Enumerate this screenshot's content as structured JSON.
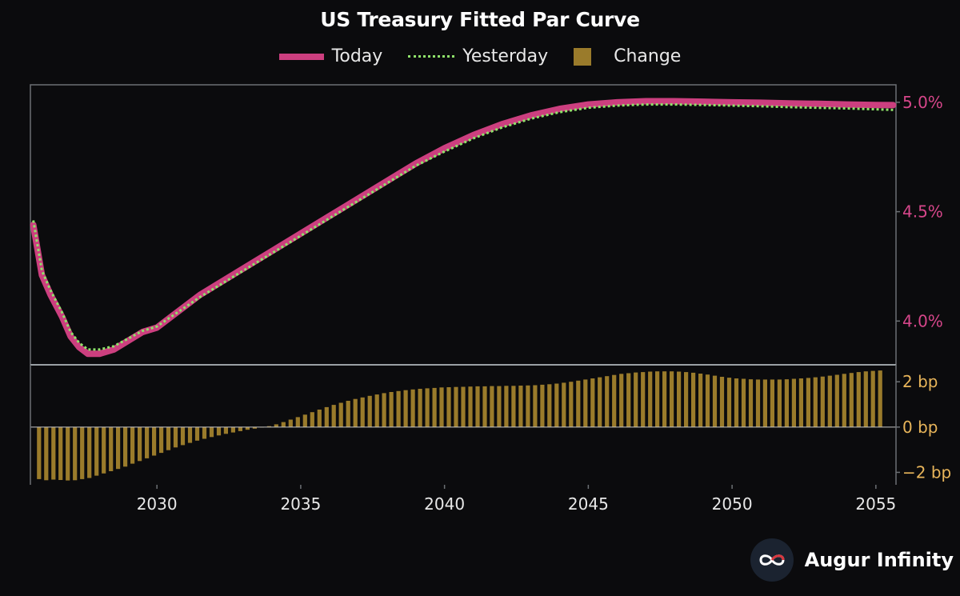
{
  "title": "US Treasury Fitted Par Curve",
  "legend": {
    "today": "Today",
    "yesterday": "Yesterday",
    "change": "Change"
  },
  "brand": {
    "name": "Augur Infinity",
    "logo_icon": "infinity-icon"
  },
  "colors": {
    "background": "#0b0b0d",
    "today": "#cc3f7f",
    "yesterday": "#8fe36a",
    "change": "#9a7b2b",
    "right_axis_top": "#d6468a",
    "right_axis_bottom": "#e8b55a",
    "frame": "#6c7074"
  },
  "chart_data": [
    {
      "type": "line",
      "title": "US Treasury Fitted Par Curve",
      "xlabel": "",
      "ylabel": "",
      "x_ticks": [
        2030,
        2035,
        2040,
        2045,
        2050,
        2055
      ],
      "xlim": [
        2025.6,
        2055.7
      ],
      "y_ticks": [
        "4.0%",
        "4.5%",
        "5.0%"
      ],
      "y_tick_values": [
        4.0,
        4.5,
        5.0
      ],
      "ylim": [
        3.8,
        5.08
      ],
      "y_axis_side": "right",
      "grid": false,
      "legend_position": "top",
      "series": [
        {
          "name": "Today",
          "style": "solid",
          "x": [
            2025.7,
            2026.0,
            2026.3,
            2026.7,
            2027.0,
            2027.3,
            2027.6,
            2028.0,
            2028.5,
            2029.0,
            2029.5,
            2030.0,
            2030.5,
            2031.0,
            2031.5,
            2032.0,
            2033.0,
            2034.0,
            2035.0,
            2036.0,
            2037.0,
            2038.0,
            2039.0,
            2040.0,
            2041.0,
            2042.0,
            2043.0,
            2044.0,
            2045.0,
            2046.0,
            2047.0,
            2048.0,
            2049.0,
            2050.0,
            2051.0,
            2052.0,
            2053.0,
            2054.0,
            2055.0,
            2055.6
          ],
          "y": [
            4.44,
            4.21,
            4.12,
            4.02,
            3.93,
            3.88,
            3.85,
            3.85,
            3.87,
            3.91,
            3.95,
            3.97,
            4.02,
            4.07,
            4.12,
            4.16,
            4.24,
            4.32,
            4.4,
            4.48,
            4.56,
            4.64,
            4.72,
            4.79,
            4.85,
            4.9,
            4.94,
            4.97,
            4.99,
            5.0,
            5.005,
            5.005,
            5.003,
            5.0,
            4.998,
            4.995,
            4.993,
            4.99,
            4.988,
            4.987
          ]
        },
        {
          "name": "Yesterday",
          "style": "dotted",
          "x": [
            2025.7,
            2026.0,
            2026.3,
            2026.7,
            2027.0,
            2027.3,
            2027.6,
            2028.0,
            2028.5,
            2029.0,
            2029.5,
            2030.0,
            2030.5,
            2031.0,
            2031.5,
            2032.0,
            2033.0,
            2034.0,
            2035.0,
            2036.0,
            2037.0,
            2038.0,
            2039.0,
            2040.0,
            2041.0,
            2042.0,
            2043.0,
            2044.0,
            2045.0,
            2046.0,
            2047.0,
            2048.0,
            2049.0,
            2050.0,
            2051.0,
            2052.0,
            2053.0,
            2054.0,
            2055.0,
            2055.6
          ],
          "y": [
            4.46,
            4.23,
            4.14,
            4.04,
            3.95,
            3.9,
            3.87,
            3.87,
            3.885,
            3.92,
            3.955,
            3.975,
            4.02,
            4.065,
            4.11,
            4.15,
            4.23,
            4.31,
            4.39,
            4.47,
            4.55,
            4.63,
            4.71,
            4.775,
            4.835,
            4.885,
            4.925,
            4.955,
            4.975,
            4.985,
            4.99,
            4.99,
            4.988,
            4.985,
            4.982,
            4.978,
            4.975,
            4.972,
            4.968,
            4.965
          ]
        }
      ]
    },
    {
      "type": "bar",
      "title": "",
      "xlabel": "",
      "ylabel": "",
      "series_name": "Change",
      "y_ticks": [
        "2 bp",
        "0 bp",
        "−2 bp"
      ],
      "y_tick_values": [
        2,
        0,
        -2
      ],
      "ylim": [
        -2.55,
        2.75
      ],
      "y_axis_side": "right",
      "x_start": 2025.9,
      "x_step": 0.25,
      "values": [
        -2.3,
        -2.35,
        -2.32,
        -2.34,
        -2.36,
        -2.35,
        -2.3,
        -2.25,
        -2.15,
        -2.05,
        -1.95,
        -1.85,
        -1.75,
        -1.62,
        -1.5,
        -1.38,
        -1.26,
        -1.14,
        -1.02,
        -0.9,
        -0.8,
        -0.7,
        -0.6,
        -0.52,
        -0.44,
        -0.37,
        -0.3,
        -0.24,
        -0.18,
        -0.12,
        -0.07,
        -0.02,
        0.04,
        0.12,
        0.22,
        0.33,
        0.44,
        0.55,
        0.66,
        0.77,
        0.88,
        0.98,
        1.07,
        1.16,
        1.24,
        1.31,
        1.38,
        1.44,
        1.5,
        1.55,
        1.59,
        1.63,
        1.66,
        1.69,
        1.71,
        1.73,
        1.75,
        1.76,
        1.77,
        1.78,
        1.79,
        1.8,
        1.8,
        1.81,
        1.81,
        1.82,
        1.82,
        1.83,
        1.84,
        1.85,
        1.87,
        1.89,
        1.92,
        1.96,
        2.0,
        2.05,
        2.1,
        2.15,
        2.2,
        2.25,
        2.3,
        2.35,
        2.38,
        2.41,
        2.43,
        2.45,
        2.46,
        2.46,
        2.46,
        2.45,
        2.43,
        2.4,
        2.36,
        2.32,
        2.27,
        2.22,
        2.18,
        2.15,
        2.13,
        2.11,
        2.1,
        2.1,
        2.1,
        2.1,
        2.11,
        2.13,
        2.15,
        2.17,
        2.2,
        2.23,
        2.27,
        2.31,
        2.35,
        2.39,
        2.43,
        2.46,
        2.48,
        2.5
      ]
    }
  ]
}
